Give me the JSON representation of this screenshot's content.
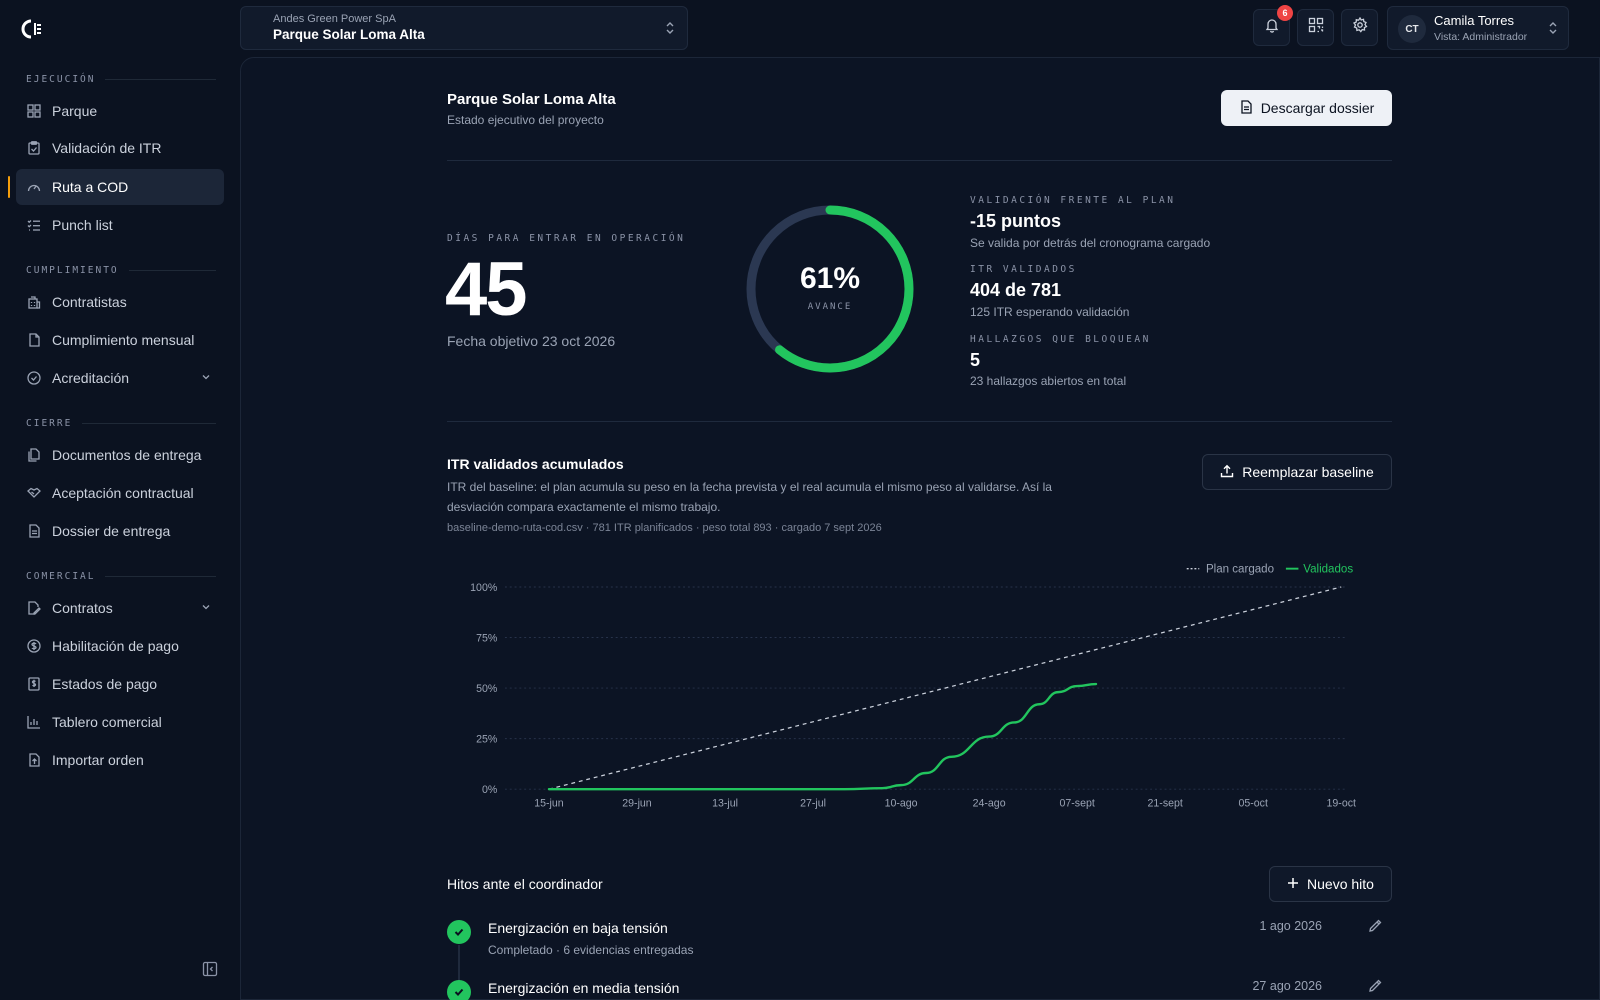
{
  "sidebar": {
    "logo_icon": "brand-logo-icon",
    "sections": {
      "ejecucion": "EJECUCIÓN",
      "cumplimiento": "CUMPLIMIENTO",
      "cierre": "CIERRE",
      "comercial": "COMERCIAL"
    },
    "items": {
      "parque": "Parque",
      "validacion_itr": "Validación de ITR",
      "ruta_cod": "Ruta a COD",
      "punch_list": "Punch list",
      "contratistas": "Contratistas",
      "cumplimiento_mensual": "Cumplimiento mensual",
      "acreditacion": "Acreditación",
      "documentos_entrega": "Documentos de entrega",
      "aceptacion_contractual": "Aceptación contractual",
      "dossier_entrega": "Dossier de entrega",
      "contratos": "Contratos",
      "habilitacion_pago": "Habilitación de pago",
      "estados_pago": "Estados de pago",
      "tablero_comercial": "Tablero comercial",
      "importar_orden": "Importar orden"
    },
    "active_item": "ruta_cod",
    "accent_color": "#f59e0b"
  },
  "topbar": {
    "org": "Andes Green Power SpA",
    "project": "Parque Solar Loma Alta",
    "notifications_count": "6",
    "user_initials": "CT",
    "user_name": "Camila Torres",
    "user_role": "Vista: Administrador"
  },
  "header": {
    "title": "Parque Solar Loma Alta",
    "subtitle": "Estado ejecutivo del proyecto",
    "download_label": "Descargar dossier"
  },
  "summary": {
    "days_label": "DÍAS PARA ENTRAR EN OPERACIÓN",
    "days_value": "45",
    "target_date": "Fecha objetivo 23 oct 2026",
    "progress_pct": 61,
    "progress_text": "61%",
    "progress_label": "AVANCE",
    "progress_color": "#22c55e",
    "stats": [
      {
        "label": "VALIDACIÓN FRENTE AL PLAN",
        "value": "-15 puntos",
        "sub": "Se valida por detrás del cronograma cargado"
      },
      {
        "label": "ITR VALIDADOS",
        "value": "404 de 781",
        "sub": "125 ITR esperando validación"
      },
      {
        "label": "HALLAZGOS QUE BLOQUEAN",
        "value": "5",
        "sub": "23 hallazgos abiertos en total"
      }
    ]
  },
  "chart_section": {
    "title": "ITR validados acumulados",
    "description": "ITR del baseline: el plan acumula su peso en la fecha prevista y el real acumula el mismo peso al validarse. Así la desviación compara exactamente el mismo trabajo.",
    "meta": "baseline-demo-ruta-cod.csv · 781 ITR planificados · peso total 893 · cargado 7 sept 2026",
    "replace_label": "Reemplazar baseline"
  },
  "chart_data": {
    "type": "line",
    "xlabel": "",
    "ylabel": "",
    "x_ticks": [
      "15-jun",
      "29-jun",
      "13-jul",
      "27-jul",
      "10-ago",
      "24-ago",
      "07-sept",
      "21-sept",
      "05-oct",
      "19-oct"
    ],
    "y_ticks": [
      "0%",
      "25%",
      "50%",
      "75%",
      "100%"
    ],
    "ylim": [
      0,
      100
    ],
    "grid": true,
    "legend_position": "top-right",
    "series": [
      {
        "name": "Plan cargado",
        "style": "dashed",
        "color": "#cbd1dc",
        "points": [
          [
            "2026-06-15",
            0
          ],
          [
            "2026-10-19",
            100
          ]
        ]
      },
      {
        "name": "Validados",
        "style": "solid",
        "color": "#22c55e",
        "points": [
          [
            "2026-06-15",
            0
          ],
          [
            "2026-07-01",
            0
          ],
          [
            "2026-07-15",
            0
          ],
          [
            "2026-08-01",
            0
          ],
          [
            "2026-08-07",
            0.5
          ],
          [
            "2026-08-10",
            2
          ],
          [
            "2026-08-14",
            8
          ],
          [
            "2026-08-18",
            16
          ],
          [
            "2026-08-24",
            26
          ],
          [
            "2026-08-28",
            33
          ],
          [
            "2026-09-01",
            42
          ],
          [
            "2026-09-04",
            48
          ],
          [
            "2026-09-07",
            51
          ],
          [
            "2026-09-10",
            52
          ]
        ]
      }
    ]
  },
  "milestones": {
    "title": "Hitos ante el coordinador",
    "new_label": "Nuevo hito",
    "items": [
      {
        "name": "Energización en baja tensión",
        "sub": "Completado · 6 evidencias entregadas",
        "date": "1 ago 2026"
      },
      {
        "name": "Energización en media tensión",
        "sub": "",
        "date": "27 ago 2026"
      }
    ]
  }
}
